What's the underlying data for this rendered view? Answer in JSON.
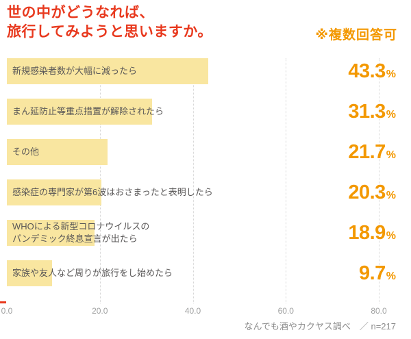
{
  "title": "世の中がどうなれば、\n旅行してみようと思いますか。",
  "note": "※複数回答可",
  "source": "なんでも酒やカクヤス調べ　／ n=217",
  "percent_sign": "%",
  "colors": {
    "bar": "#F9E6A0",
    "title_red": "#E8391E",
    "accent_orange": "#F39800",
    "label_gray": "#595757",
    "tick_gray": "#9FA0A0",
    "grid_gray": "#D6D6D6"
  },
  "chart_data": {
    "type": "bar",
    "orientation": "horizontal",
    "title": "世の中がどうなれば、旅行してみようと思いますか。",
    "subtitle": "※複数回答可",
    "categories": [
      "新規感染者数が大幅に減ったら",
      "まん延防止等重点措置が解除されたら",
      "その他",
      "感染症の専門家が第6波はおさまったと表明したら",
      "WHOによる新型コロナウイルスの\nパンデミック終息宣言が出たら",
      "家族や友人など周りが旅行をし始めたら"
    ],
    "values": [
      43.3,
      31.3,
      21.7,
      20.3,
      18.9,
      9.7
    ],
    "value_unit": "%",
    "xlim": [
      0,
      80
    ],
    "x_ticks": [
      "0.0",
      "20.0",
      "40.0",
      "60.0",
      "80.0"
    ],
    "grid": true,
    "legend": false,
    "source": "なんでも酒やカクヤス調べ　／ n=217"
  }
}
